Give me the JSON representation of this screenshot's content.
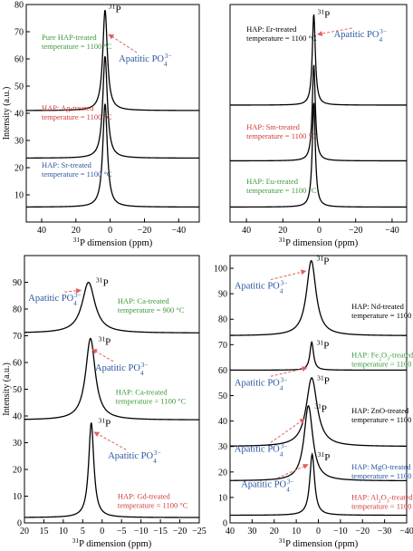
{
  "colors": {
    "axis": "#000000",
    "curve": "#000000",
    "arrow": "#e06060",
    "black_label": "#000000",
    "green_label": "#3a9a3a",
    "red_label": "#d03a3a",
    "blue_label": "#2a56a0"
  },
  "chart_data": [
    {
      "id": "top-left",
      "type": "line",
      "xlabel": "31P dimension (ppm)",
      "ylabel": "Intensity (a.u.)",
      "xlim": [
        49,
        -52
      ],
      "ylim": [
        0,
        80
      ],
      "xticks": [
        40,
        20,
        0,
        -20,
        -40
      ],
      "yticks": [
        10,
        20,
        30,
        40,
        50,
        60,
        70,
        80
      ],
      "series": [
        {
          "label": "Pure HAP-treated\ntemperature = 1100 °C",
          "label_color": "green",
          "baseline": 41,
          "peak": 78,
          "center": 3,
          "width": 1.6
        },
        {
          "label": "HAP: Ag-treated\ntemperature = 1100 °C",
          "label_color": "red",
          "baseline": 23.5,
          "peak": 61,
          "center": 3,
          "width": 1.6
        },
        {
          "label": "HAP: Sr-treated\ntemperature = 1100 °C",
          "label_color": "blue",
          "baseline": 5.5,
          "peak": 43.5,
          "center": 3,
          "width": 1.6
        }
      ],
      "annotations": [
        {
          "text": "31P",
          "at": [
            3,
            78
          ]
        },
        {
          "text": "Apatitic PO43−",
          "color": "blue",
          "points_to": [
            3,
            70
          ]
        }
      ]
    },
    {
      "id": "top-right",
      "type": "line",
      "xlabel": "31P dimension (ppm)",
      "ylabel": "",
      "xlim": [
        49,
        -48
      ],
      "ylim": [
        0,
        80
      ],
      "xticks": [
        40,
        20,
        0,
        -20,
        -40
      ],
      "yticks": [],
      "series": [
        {
          "label": "HAP: Er-treated\ntemperature = 1100 °C",
          "label_color": "black",
          "baseline": 43,
          "peak": 76.5,
          "center": 3,
          "width": 1.0
        },
        {
          "label": "HAP: Sm-treated\ntemperature = 1100 °C",
          "label_color": "red",
          "baseline": 22.5,
          "peak": 58,
          "center": 3,
          "width": 1.0
        },
        {
          "label": "HAP: Eu-treated\ntemperature = 1100 °C",
          "label_color": "green",
          "baseline": 5.5,
          "peak": 44,
          "center": 3,
          "width": 1.0
        }
      ],
      "annotations": [
        {
          "text": "31P",
          "at": [
            3,
            76.5
          ]
        },
        {
          "text": "Apatitic PO43−",
          "color": "blue",
          "points_to": [
            3,
            70
          ]
        }
      ]
    },
    {
      "id": "bottom-left",
      "type": "line",
      "xlabel": "31P dimension (ppm)",
      "ylabel": "Intensity (a.u.)",
      "xlim": [
        20,
        -25
      ],
      "ylim": [
        0,
        100
      ],
      "xticks": [
        20,
        15,
        10,
        5,
        0,
        -5,
        -10,
        -15,
        -20,
        -25
      ],
      "yticks": [
        0,
        10,
        20,
        30,
        40,
        50,
        60,
        70,
        80,
        90
      ],
      "series": [
        {
          "label": "HAP: Ca-treated\ntemperature = 900 °C",
          "label_color": "green",
          "baseline": 71,
          "peak": 90,
          "center": 3.5,
          "width": 2.0
        },
        {
          "label": "HAP: Ca-treated\ntemperature = 1100 °C",
          "label_color": "green",
          "baseline": 38.5,
          "peak": 69,
          "center": 3.0,
          "width": 1.5
        },
        {
          "label": "HAP: Gd-treated\ntemperature = 1100 °C",
          "label_color": "red",
          "baseline": 2,
          "peak": 37.5,
          "center": 2.8,
          "width": 0.8
        }
      ],
      "annotations": [
        {
          "text": "31P",
          "at": [
            3.5,
            90
          ]
        },
        {
          "text": "31P",
          "at": [
            3,
            69
          ]
        },
        {
          "text": "31P",
          "at": [
            2.8,
            37.5
          ]
        },
        {
          "text": "Apatitic PO43−",
          "color": "blue",
          "points_to": [
            4.5,
            88
          ]
        },
        {
          "text": "Apatitic PO43−",
          "color": "blue",
          "points_to": [
            3.5,
            66
          ]
        },
        {
          "text": "Apatitic PO43−",
          "color": "blue",
          "points_to": [
            3,
            35
          ]
        }
      ]
    },
    {
      "id": "bottom-right",
      "type": "line",
      "xlabel": "31P dimension (ppm)",
      "ylabel": "",
      "xlim": [
        40,
        -40
      ],
      "ylim": [
        0,
        105
      ],
      "xticks": [
        40,
        30,
        20,
        10,
        0,
        -10,
        -20,
        -30,
        -40
      ],
      "yticks": [
        0,
        10,
        20,
        30,
        40,
        50,
        60,
        70,
        80,
        90,
        100
      ],
      "series": [
        {
          "label": "HAP: Nd-treated\ntemperature = 1100 °C",
          "label_color": "black",
          "baseline": 73.5,
          "peak": 103,
          "center": 3.2,
          "width": 2.6
        },
        {
          "label": "HAP: Fe2O3-treated\ntemperature = 1100 °C",
          "label_color": "green",
          "baseline": 60,
          "peak": 71,
          "center": 3.0,
          "width": 1.0
        },
        {
          "label": "HAP: ZnO-treated\ntemperature = 1100 °C",
          "label_color": "black",
          "baseline": 30,
          "peak": 57,
          "center": 3.0,
          "width": 3.0
        },
        {
          "label": "HAP: MgO-treated\ntemperature = 1100 °C",
          "label_color": "blue",
          "baseline": 16.5,
          "peak": 46,
          "center": 4.5,
          "width": 2.4
        },
        {
          "label": "HAP: Al2O3-treated\ntemperature = 1100 °C",
          "label_color": "red",
          "baseline": 3,
          "peak": 27,
          "center": 2.8,
          "width": 1.3
        }
      ],
      "annotations": [
        {
          "text": "31P",
          "at": [
            3.2,
            103
          ]
        },
        {
          "text": "31P",
          "at": [
            3,
            71
          ]
        },
        {
          "text": "31P",
          "at": [
            3,
            57
          ]
        },
        {
          "text": "31P",
          "at": [
            4.5,
            46
          ]
        },
        {
          "text": "31P",
          "at": [
            2.8,
            27
          ]
        },
        {
          "text": "Apatitic PO43−",
          "color": "blue",
          "points_to": [
            4,
            100
          ]
        },
        {
          "text": "Apatitic PO43−",
          "color": "blue",
          "points_to": [
            3.5,
            62
          ]
        },
        {
          "text": "Apatitic PO43−",
          "color": "blue",
          "points_to": [
            4.5,
            42
          ]
        },
        {
          "text": "Apatitic PO43−",
          "color": "blue",
          "points_to": [
            3,
            24
          ]
        }
      ]
    }
  ]
}
